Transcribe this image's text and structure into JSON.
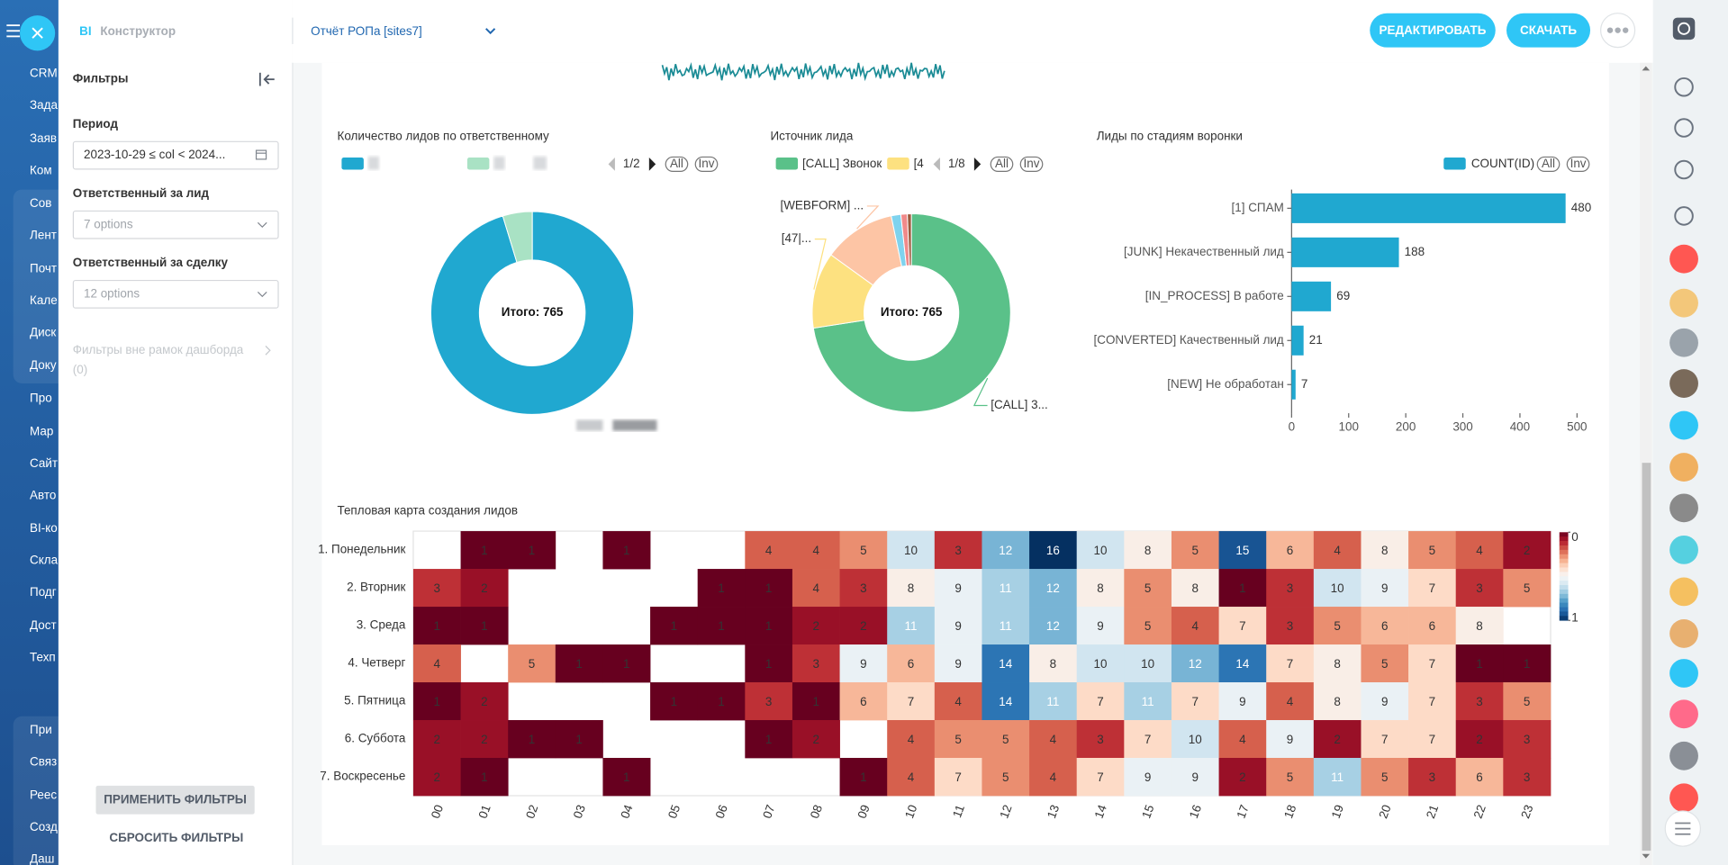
{
  "nav": [
    "CRM",
    "Зада",
    "Заяв",
    "Ком",
    "Сов",
    "Лент",
    "Почт",
    "Кале",
    "Диск",
    "Доку",
    "Про",
    "Мар",
    "Сайт",
    "Авто",
    "BI-ко",
    "Скла",
    "Подг",
    "Дост",
    "Техп",
    "При",
    "Связ",
    "Реес",
    "Созд",
    "Даш"
  ],
  "header": {
    "app_prefix": "BI",
    "app_name": "Конструктор",
    "report_title": "Отчёт РОПа [sites7]",
    "edit_button": "РЕДАКТИРОВАТЬ",
    "download_button": "СКАЧАТЬ"
  },
  "filters": {
    "title": "Фильтры",
    "fields": [
      {
        "label": "Период",
        "value": "2023-10-29 ≤ col < 2024..."
      },
      {
        "label": "Ответственный за лид",
        "value": "7 options"
      },
      {
        "label": "Ответственный за сделку",
        "value": "12 options"
      }
    ],
    "outside_title": "Фильтры вне рамок дашборда",
    "outside_count": "(0)",
    "apply_button": "ПРИМЕНИТЬ ФИЛЬТРЫ",
    "reset_button": "СБРОСИТЬ ФИЛЬТРЫ"
  },
  "chart_data": [
    {
      "type": "donut",
      "title": "Количество лидов по ответственному",
      "center_label": "Итого: 765",
      "values": [
        729,
        36
      ],
      "colors": [
        "#20a8d0",
        "#a9e2c4"
      ],
      "legend_page": "1/2",
      "legend_buttons": [
        "All",
        "Inv"
      ]
    },
    {
      "type": "donut",
      "title": "Источник лида",
      "center_label": "Итого: 765",
      "categories": [
        "[CALL] Звонок",
        "[4",
        null,
        null,
        null,
        null
      ],
      "slice_labels": [
        "[CALL] 3...",
        "[47|...",
        "[WEBFORM] ...",
        null,
        null,
        null
      ],
      "values": [
        555,
        95,
        90,
        12,
        8,
        5
      ],
      "colors": [
        "#5ac189",
        "#fde180",
        "#fdc5a5",
        "#7fd3ee",
        "#f08a8a",
        "#9c5a3c"
      ],
      "legend_page": "1/8",
      "legend_buttons": [
        "All",
        "Inv"
      ]
    },
    {
      "type": "bar",
      "orientation": "horizontal",
      "title": "Лиды по стадиям воронки",
      "categories": [
        "[1] СПАМ",
        "[JUNK] Некачественный лид",
        "[IN_PROCESS] В работе",
        "[CONVERTED] Качественный лид",
        "[NEW] Не обработан"
      ],
      "series": [
        {
          "name": "COUNT(ID)",
          "color": "#20a8d0",
          "values": [
            480,
            188,
            69,
            21,
            7
          ]
        }
      ],
      "xlim": [
        0,
        500
      ],
      "xticks": [
        0,
        100,
        200,
        300,
        400,
        500
      ],
      "legend_buttons": [
        "All",
        "Inv"
      ]
    },
    {
      "type": "heatmap",
      "title": "Тепловая карта создания лидов",
      "rows": [
        "1. Понедельник",
        "2. Вторник",
        "3. Среда",
        "4. Четверг",
        "5. Пятница",
        "6. Суббота",
        "7. Воскресенье"
      ],
      "columns": [
        "00",
        "01",
        "02",
        "03",
        "04",
        "05",
        "06",
        "07",
        "08",
        "09",
        "10",
        "11",
        "12",
        "13",
        "14",
        "15",
        "16",
        "17",
        "18",
        "19",
        "20",
        "21",
        "22",
        "23"
      ],
      "values": [
        [
          null,
          1,
          1,
          null,
          1,
          null,
          null,
          4,
          4,
          5,
          10,
          3,
          12,
          16,
          10,
          8,
          5,
          15,
          6,
          4,
          8,
          5,
          4,
          2
        ],
        [
          3,
          2,
          null,
          null,
          null,
          null,
          1,
          1,
          4,
          3,
          8,
          9,
          11,
          12,
          8,
          5,
          8,
          1,
          3,
          10,
          9,
          7,
          3,
          5
        ],
        [
          1,
          1,
          null,
          null,
          null,
          1,
          1,
          1,
          2,
          2,
          11,
          9,
          11,
          12,
          9,
          5,
          4,
          7,
          3,
          5,
          6,
          6,
          8,
          null
        ],
        [
          4,
          null,
          5,
          1,
          1,
          null,
          null,
          1,
          3,
          9,
          6,
          9,
          14,
          8,
          10,
          10,
          12,
          14,
          7,
          8,
          5,
          7,
          1,
          1
        ],
        [
          1,
          2,
          null,
          null,
          null,
          1,
          1,
          3,
          1,
          6,
          7,
          4,
          14,
          11,
          7,
          11,
          7,
          9,
          4,
          8,
          9,
          7,
          3,
          5
        ],
        [
          2,
          2,
          1,
          1,
          null,
          null,
          null,
          1,
          2,
          null,
          4,
          5,
          5,
          4,
          3,
          7,
          10,
          4,
          9,
          2,
          7,
          7,
          2,
          3
        ],
        [
          2,
          1,
          null,
          null,
          1,
          null,
          null,
          null,
          null,
          1,
          4,
          7,
          5,
          4,
          7,
          9,
          9,
          2,
          5,
          11,
          5,
          3,
          6,
          3
        ]
      ],
      "colormap": "RdBu",
      "colorbar_ticks": [
        0,
        1
      ]
    }
  ]
}
